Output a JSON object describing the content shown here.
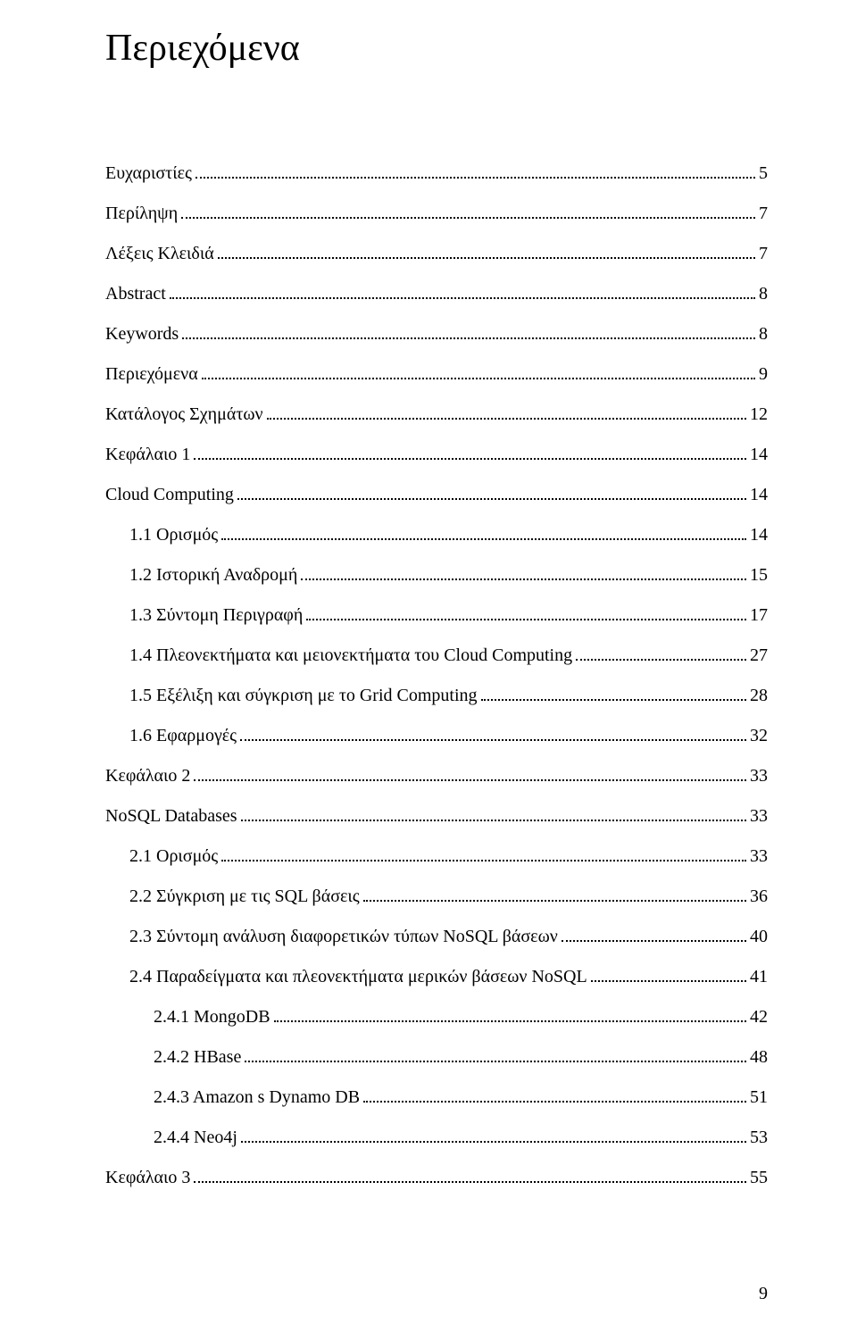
{
  "title": "Περιεχόμενα",
  "page_number": "9",
  "typography": {
    "title_fontsize": 42,
    "entry_fontsize": 20,
    "font_family": "Times New Roman",
    "text_color": "#000000",
    "background_color": "#ffffff"
  },
  "entries": [
    {
      "label": "Ευχαριστίες",
      "page": "5",
      "indent": 0
    },
    {
      "label": "Περίληψη",
      "page": "7",
      "indent": 0
    },
    {
      "label": "Λέξεις Κλειδιά",
      "page": "7",
      "indent": 0
    },
    {
      "label": "Abstract",
      "page": "8",
      "indent": 0
    },
    {
      "label": "Keywords",
      "page": "8",
      "indent": 0
    },
    {
      "label": "Περιεχόμενα",
      "page": "9",
      "indent": 0
    },
    {
      "label": "Κατάλογος Σχημάτων",
      "page": "12",
      "indent": 0
    },
    {
      "label": "Κεφάλαιο 1",
      "page": "14",
      "indent": 0
    },
    {
      "label": "Cloud Computing",
      "page": "14",
      "indent": 0
    },
    {
      "label": "1.1 Ορισμός",
      "page": "14",
      "indent": 1
    },
    {
      "label": "1.2 Ιστορική Αναδρομή",
      "page": "15",
      "indent": 1
    },
    {
      "label": "1.3 Σύντομη Περιγραφή",
      "page": "17",
      "indent": 1
    },
    {
      "label": "1.4 Πλεονεκτήματα και μειονεκτήματα του Cloud Computing",
      "page": "27",
      "indent": 1
    },
    {
      "label": "1.5 Εξέλιξη και σύγκριση με το Grid Computing",
      "page": "28",
      "indent": 1
    },
    {
      "label": "1.6 Εφαρμογές",
      "page": "32",
      "indent": 1
    },
    {
      "label": "Κεφάλαιο 2",
      "page": "33",
      "indent": 0
    },
    {
      "label": "NoSQL Databases",
      "page": "33",
      "indent": 0
    },
    {
      "label": "2.1 Ορισμός",
      "page": "33",
      "indent": 1
    },
    {
      "label": "2.2 Σύγκριση με τις SQL βάσεις",
      "page": "36",
      "indent": 1
    },
    {
      "label": "2.3 Σύντομη ανάλυση διαφορετικών τύπων NoSQL βάσεων",
      "page": "40",
      "indent": 1
    },
    {
      "label": "2.4 Παραδείγματα και πλεονεκτήματα μερικών βάσεων NoSQL",
      "page": "41",
      "indent": 1
    },
    {
      "label": "2.4.1 MongoDB",
      "page": "42",
      "indent": 2
    },
    {
      "label": "2.4.2 HBase",
      "page": "48",
      "indent": 2
    },
    {
      "label": "2.4.3 Amazon s Dynamo DB",
      "page": "51",
      "indent": 2
    },
    {
      "label": "2.4.4 Neo4j",
      "page": "53",
      "indent": 2
    },
    {
      "label": "Κεφάλαιο 3",
      "page": "55",
      "indent": 0
    }
  ]
}
